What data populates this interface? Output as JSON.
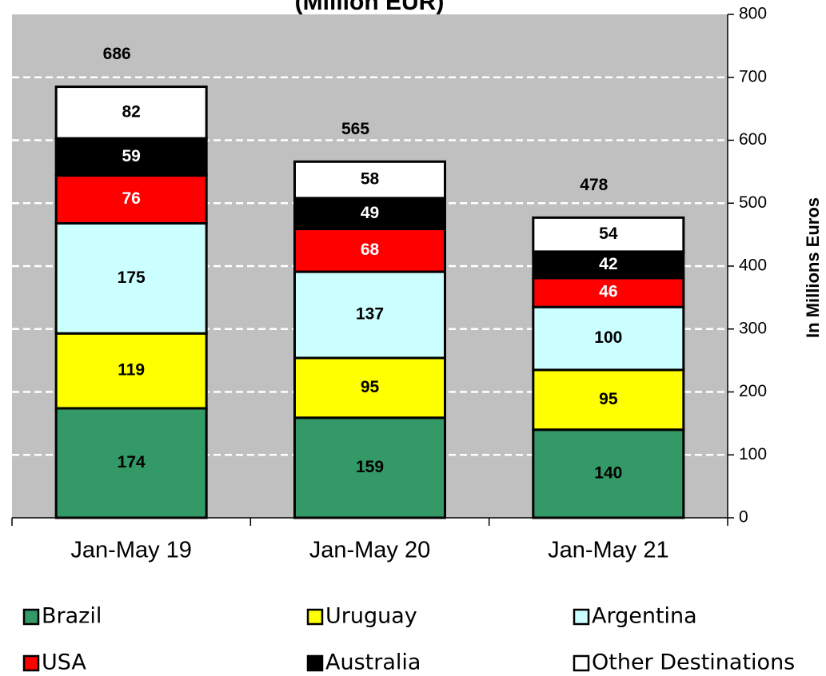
{
  "chart_data": {
    "type": "stacked_bar",
    "title": "(Million EUR)",
    "y_axis_label": "In Millions Euros",
    "categories": [
      "Jan-May 19",
      "Jan-May 20",
      "Jan-May 21"
    ],
    "series": [
      {
        "name": "Brazil",
        "color": "#339966",
        "label_color": "#000000",
        "values": [
          174,
          159,
          140
        ]
      },
      {
        "name": "Uruguay",
        "color": "#ffff00",
        "label_color": "#000000",
        "values": [
          119,
          95,
          95
        ]
      },
      {
        "name": "Argentina",
        "color": "#ccffff",
        "label_color": "#000000",
        "values": [
          175,
          137,
          100
        ]
      },
      {
        "name": "USA",
        "color": "#ff0000",
        "label_color": "#ffffff",
        "values": [
          76,
          68,
          46
        ]
      },
      {
        "name": "Australia",
        "color": "#000000",
        "label_color": "#ffffff",
        "values": [
          59,
          49,
          42
        ]
      },
      {
        "name": "Other Destinations",
        "color": "#ffffff",
        "label_color": "#000000",
        "values": [
          82,
          58,
          54
        ]
      }
    ],
    "totals": [
      686,
      565,
      478
    ],
    "ylim": [
      0,
      800
    ],
    "yticks": [
      0,
      100,
      200,
      300,
      400,
      500,
      600,
      700,
      800
    ],
    "grid": true,
    "legend": "bottom",
    "plot_background": "#c0c0c0"
  }
}
